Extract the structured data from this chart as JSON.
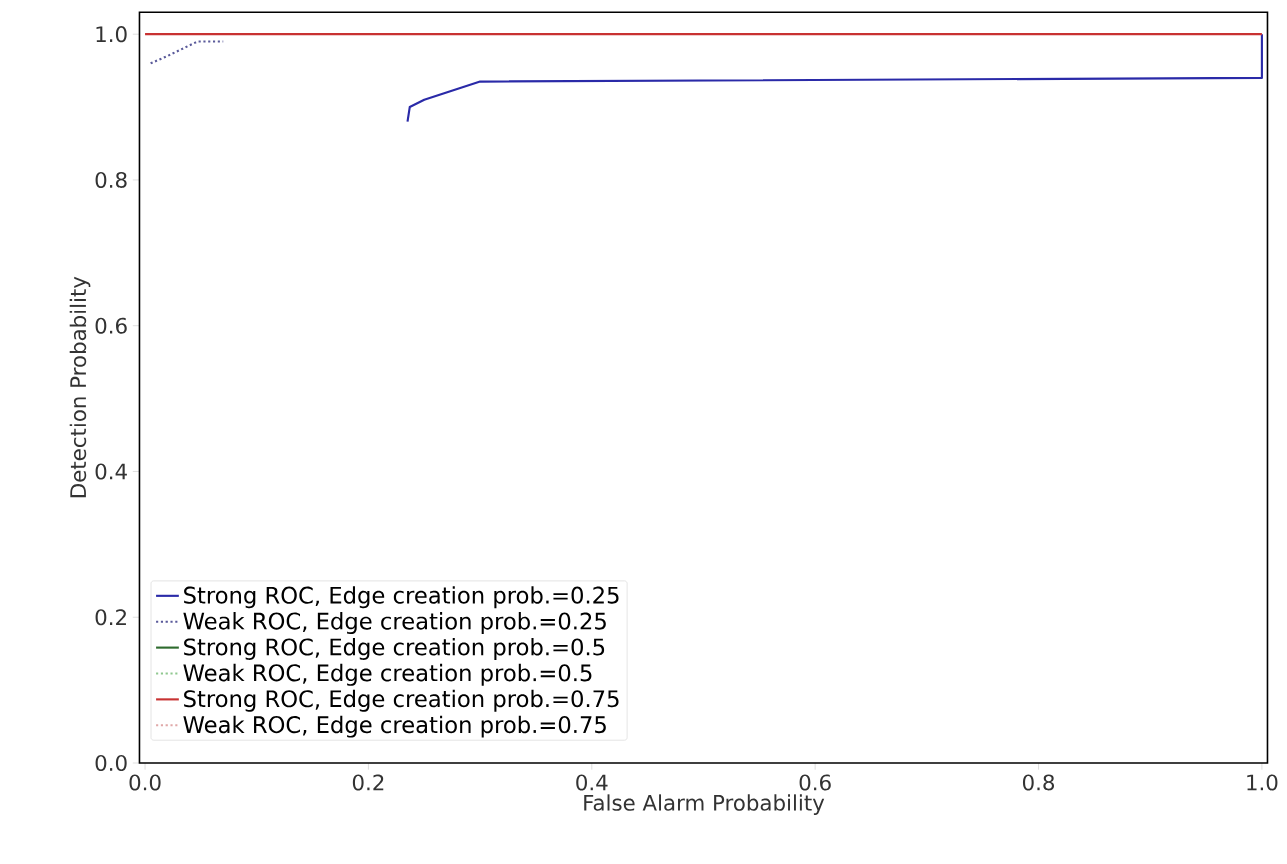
{
  "chart_data": {
    "type": "line",
    "xlabel": "False Alarm Probability",
    "ylabel": "Detection Probability",
    "xlim": [
      -0.005,
      1.005
    ],
    "ylim": [
      0,
      1.03
    ],
    "xticks": [
      {
        "value": 0,
        "label": "0.0"
      },
      0.2,
      0.4,
      0.6,
      0.8,
      {
        "value": 1,
        "label": "1.0"
      }
    ],
    "yticks": [
      {
        "value": 0,
        "label": "0.0"
      },
      0.2,
      0.4,
      0.6,
      0.8,
      {
        "value": 1,
        "label": "1.0"
      }
    ],
    "grid": false,
    "legend": "bottom left",
    "series": [
      {
        "name": "Strong ROC, Edge creation prob.=0.25",
        "color": "#2a2aa8",
        "line_style": "solid",
        "x": [
          0.235,
          0.237,
          0.25,
          0.3,
          1.0,
          1.0
        ],
        "values": [
          0.88,
          0.9,
          0.91,
          0.935,
          0.94,
          1.0
        ]
      },
      {
        "name": "Weak ROC, Edge creation prob.=0.25",
        "color": "#5a5a9a",
        "line_style": "dotted",
        "x": [
          0.005,
          0.02,
          0.047,
          0.07
        ],
        "values": [
          0.96,
          0.97,
          0.99,
          0.99
        ]
      },
      {
        "name": "Strong ROC, Edge creation prob.=0.5",
        "color": "#2e6b2e",
        "line_style": "solid"
      },
      {
        "name": "Weak ROC, Edge creation prob.=0.5",
        "color": "#90c890",
        "line_style": "dotted"
      },
      {
        "name": "Strong ROC, Edge creation prob.=0.75",
        "color": "#c83232",
        "line_style": "solid",
        "x": [
          0,
          1.0
        ],
        "values": [
          1.0,
          1.0
        ]
      },
      {
        "name": "Weak ROC, Edge creation prob.=0.75",
        "color": "#e0a8a8",
        "line_style": "dotted"
      }
    ]
  }
}
